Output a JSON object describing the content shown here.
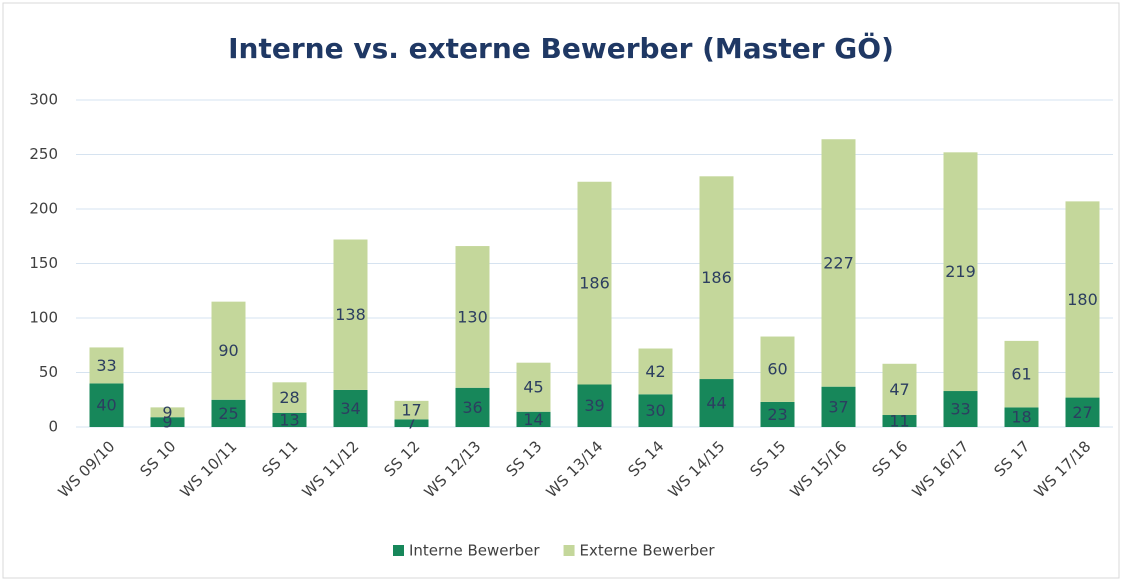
{
  "chart_data": {
    "type": "stacked_bar",
    "title": "Interne vs. externe Bewerber (Master GÖ)",
    "categories": [
      "WS 09/10",
      "SS 10",
      "WS 10/11",
      "SS 11",
      "WS 11/12",
      "SS 12",
      "WS 12/13",
      "SS 13",
      "WS 13/14",
      "SS 14",
      "WS 14/15",
      "SS 15",
      "WS 15/16",
      "SS 16",
      "WS 16/17",
      "SS 17",
      "WS 17/18"
    ],
    "series": [
      {
        "name": "Interne Bewerber",
        "color": "#17875a",
        "values": [
          40,
          9,
          25,
          13,
          34,
          7,
          36,
          14,
          39,
          30,
          44,
          23,
          37,
          11,
          33,
          18,
          27
        ]
      },
      {
        "name": "Externe Bewerber",
        "color": "#c4d79b",
        "values": [
          33,
          9,
          90,
          28,
          138,
          17,
          130,
          45,
          186,
          42,
          186,
          60,
          227,
          47,
          219,
          61,
          180
        ]
      }
    ],
    "ylim": [
      0,
      300
    ],
    "yticks": [
      0,
      50,
      100,
      150,
      200,
      250,
      300
    ],
    "grid": true,
    "legend": "bottom"
  }
}
